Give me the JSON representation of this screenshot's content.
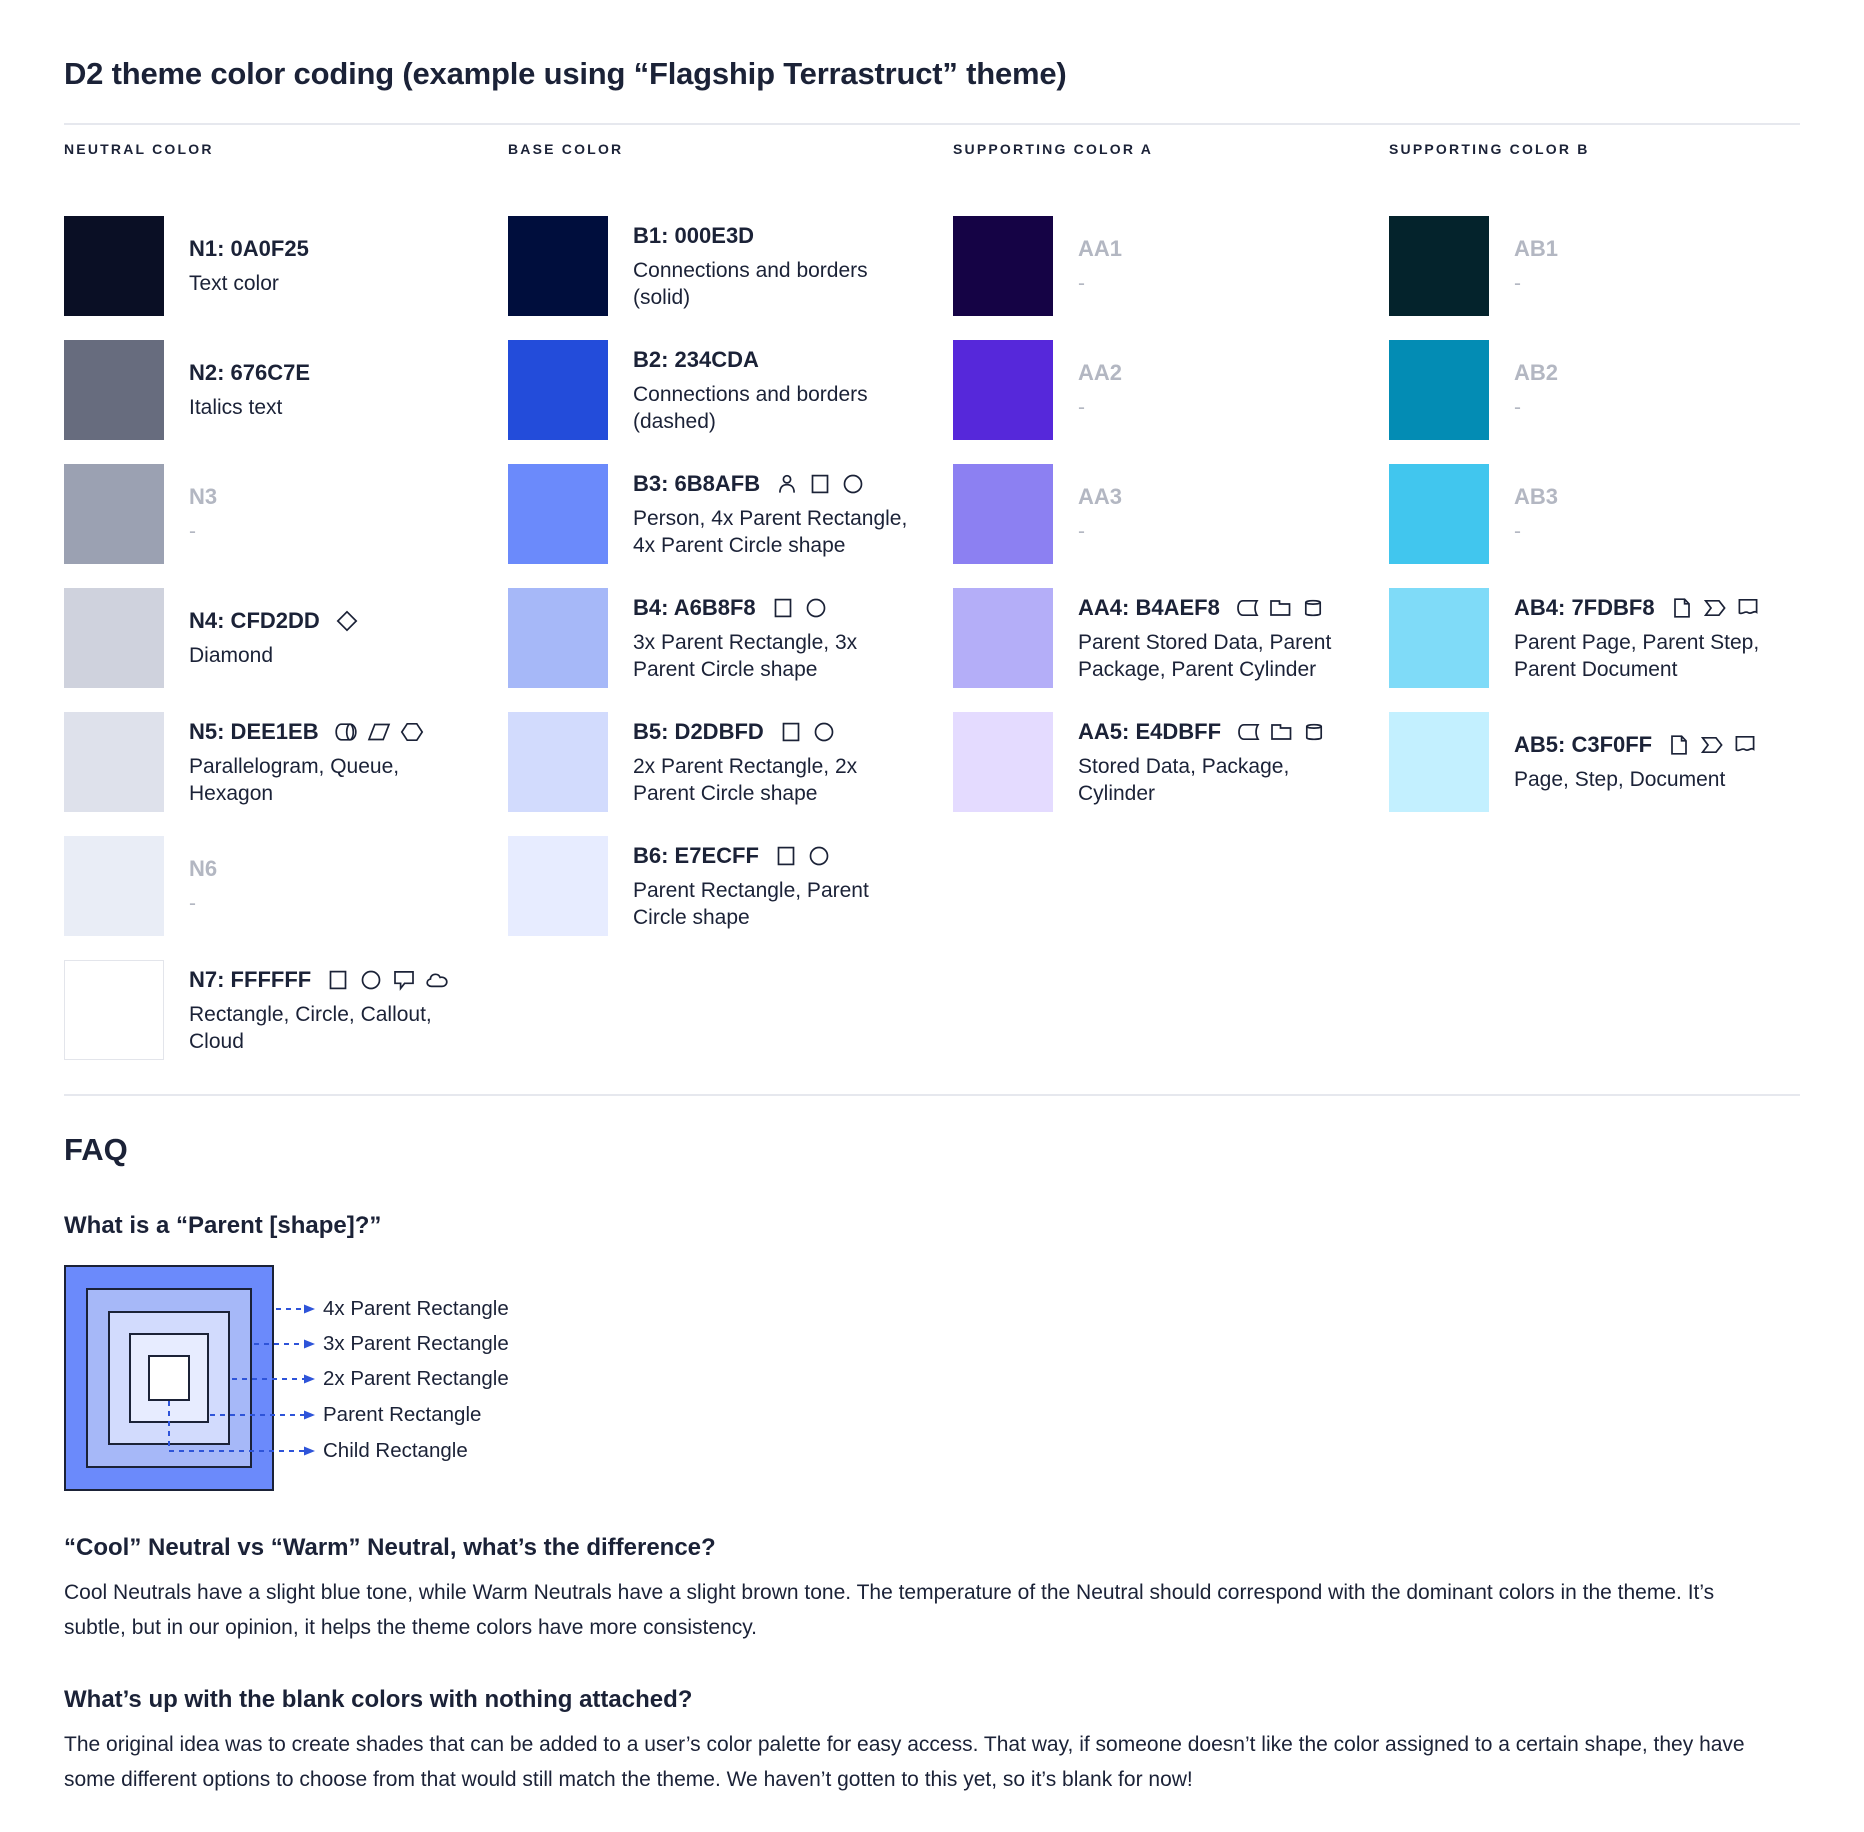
{
  "title": "D2 theme color coding (example using “Flagship Terrastruct” theme)",
  "colors": {
    "text": "#1B2237",
    "muted_label": "#B3B7C2",
    "divider": "#E6E8EE",
    "leader_blue": "#2E54D9",
    "diagram_border": "#1B2237"
  },
  "columns": [
    {
      "header": "NEUTRAL COLOR",
      "entries": [
        {
          "code": "N1: 0A0F25",
          "color": "#0A0F25",
          "desc": "Text color",
          "muted": false,
          "icons": []
        },
        {
          "code": "N2: 676C7E",
          "color": "#676C7E",
          "desc": "Italics text",
          "muted": false,
          "icons": []
        },
        {
          "code": "N3",
          "color": "#9BA1B2",
          "desc": "-",
          "muted": true,
          "icons": []
        },
        {
          "code": "N4: CFD2DD",
          "color": "#CFD2DD",
          "desc": "Diamond",
          "muted": false,
          "icons": [
            "diamond"
          ]
        },
        {
          "code": "N5: DEE1EB",
          "color": "#DEE1EB",
          "desc": "Parallelogram, Queue,\nHexagon",
          "muted": false,
          "icons": [
            "queue",
            "parallelogram",
            "hexagon"
          ]
        },
        {
          "code": "N6",
          "color": "#E9EDF6",
          "desc": "-",
          "muted": true,
          "icons": []
        },
        {
          "code": "N7: FFFFFF",
          "color": "#FFFFFF",
          "desc": "Rectangle, Circle, Callout,\nCloud",
          "muted": false,
          "icons": [
            "rectangle",
            "circle",
            "callout",
            "cloud"
          ],
          "border": true
        }
      ]
    },
    {
      "header": "BASE COLOR",
      "entries": [
        {
          "code": "B1: 000E3D",
          "color": "#000E3D",
          "desc": "Connections and borders\n(solid)",
          "muted": false,
          "icons": []
        },
        {
          "code": "B2: 234CDA",
          "color": "#234CDA",
          "desc": "Connections and borders\n(dashed)",
          "muted": false,
          "icons": []
        },
        {
          "code": "B3: 6B8AFB",
          "color": "#6B8AFB",
          "desc": "Person, 4x Parent Rectangle,\n4x Parent Circle shape",
          "muted": false,
          "icons": [
            "person",
            "rectangle",
            "circle"
          ]
        },
        {
          "code": "B4: A6B8F8",
          "color": "#A6B8F8",
          "desc": "3x Parent Rectangle, 3x\nParent Circle shape",
          "muted": false,
          "icons": [
            "rectangle",
            "circle"
          ]
        },
        {
          "code": "B5: D2DBFD",
          "color": "#D2DBFD",
          "desc": "2x Parent Rectangle, 2x\nParent Circle shape",
          "muted": false,
          "icons": [
            "rectangle",
            "circle"
          ]
        },
        {
          "code": "B6: E7ECFF",
          "color": "#E7ECFF",
          "desc": "Parent Rectangle, Parent\nCircle shape",
          "muted": false,
          "icons": [
            "rectangle",
            "circle"
          ]
        }
      ]
    },
    {
      "header": "SUPPORTING COLOR A",
      "entries": [
        {
          "code": "AA1",
          "color": "#150345",
          "desc": "-",
          "muted": true,
          "icons": []
        },
        {
          "code": "AA2",
          "color": "#5628DA",
          "desc": "-",
          "muted": true,
          "icons": []
        },
        {
          "code": "AA3",
          "color": "#8C80F2",
          "desc": "-",
          "muted": true,
          "icons": []
        },
        {
          "code": "AA4: B4AEF8",
          "color": "#B4AEF8",
          "desc": "Parent Stored Data, Parent\nPackage,  Parent Cylinder",
          "muted": false,
          "icons": [
            "stored-data",
            "package",
            "cylinder"
          ]
        },
        {
          "code": "AA5: E4DBFF",
          "color": "#E4DBFF",
          "desc": "Stored Data, Package,\nCylinder",
          "muted": false,
          "icons": [
            "stored-data",
            "package",
            "cylinder"
          ]
        }
      ]
    },
    {
      "header": "SUPPORTING COLOR B",
      "entries": [
        {
          "code": "AB1",
          "color": "#04232C",
          "desc": "-",
          "muted": true,
          "icons": []
        },
        {
          "code": "AB2",
          "color": "#038CB4",
          "desc": "-",
          "muted": true,
          "icons": []
        },
        {
          "code": "AB3",
          "color": "#41C6EE",
          "desc": "-",
          "muted": true,
          "icons": []
        },
        {
          "code": "AB4: 7FDBF8",
          "color": "#7FDBF8",
          "desc": "Parent Page, Parent Step,\nParent Document",
          "muted": false,
          "icons": [
            "page",
            "step",
            "document"
          ]
        },
        {
          "code": "AB5: C3F0FF",
          "color": "#C3F0FF",
          "desc": "Page, Step, Document",
          "muted": false,
          "icons": [
            "page",
            "step",
            "document"
          ]
        }
      ]
    }
  ],
  "faq": {
    "heading": "FAQ",
    "q1": {
      "question": "What is a “Parent [shape]?”",
      "diagram": {
        "levels": [
          {
            "label": "4x Parent Rectangle",
            "color": "#6B8AFB"
          },
          {
            "label": "3x Parent Rectangle",
            "color": "#A6B8F8"
          },
          {
            "label": "2x Parent Rectangle",
            "color": "#D2DBFD"
          },
          {
            "label": "Parent Rectangle",
            "color": "#E7ECFF"
          },
          {
            "label": "Child Rectangle",
            "color": "#FFFFFF"
          }
        ]
      }
    },
    "q2": {
      "question": "“Cool” Neutral vs “Warm” Neutral, what’s the difference?",
      "answer": "Cool Neutrals have a slight blue tone, while Warm Neutrals have a slight brown tone. The temperature of the Neutral should correspond with the dominant colors in the theme. It’s subtle, but in our opinion, it helps the theme colors have more consistency."
    },
    "q3": {
      "question": "What’s up with the blank colors with nothing attached?",
      "answer": "The original idea was to create shades that can be added to a user’s color palette for easy access. That way, if someone doesn’t like the color assigned to a certain shape, they have some different options to choose from that would still match the theme. We haven’t gotten to this yet, so it’s blank for now!"
    }
  }
}
